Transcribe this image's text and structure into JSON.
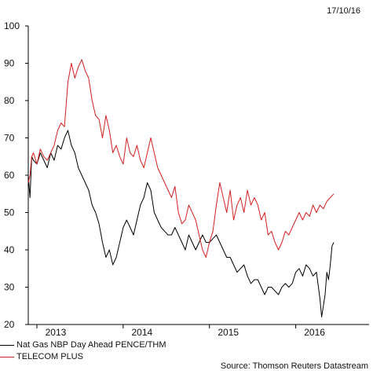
{
  "date_label": "17/10/16",
  "source": "Source: Thomson Reuters Datastream",
  "chart_data": {
    "type": "line",
    "title": "",
    "ylim": [
      20,
      100
    ],
    "xlim": [
      2012.9,
      2016.85
    ],
    "yticks": [
      20,
      30,
      40,
      50,
      60,
      70,
      80,
      90,
      100
    ],
    "xtick_labels": [
      {
        "label": "2013",
        "x": 2013.0
      },
      {
        "label": "2014",
        "x": 2014.0
      },
      {
        "label": "2015",
        "x": 2015.0
      },
      {
        "label": "2016",
        "x": 2016.0
      }
    ],
    "grid": false,
    "legend_position": "bottom-left",
    "series": [
      {
        "name": "Nat Gas NBP Day Ahead PENCE/THM",
        "color": "#000000",
        "x": [
          2012.9,
          2012.92,
          2012.94,
          2012.96,
          2013.0,
          2013.04,
          2013.08,
          2013.12,
          2013.16,
          2013.2,
          2013.24,
          2013.28,
          2013.32,
          2013.36,
          2013.4,
          2013.44,
          2013.48,
          2013.52,
          2013.56,
          2013.6,
          2013.64,
          2013.68,
          2013.72,
          2013.76,
          2013.8,
          2013.84,
          2013.88,
          2013.92,
          2013.96,
          2014.0,
          2014.04,
          2014.08,
          2014.12,
          2014.16,
          2014.2,
          2014.24,
          2014.28,
          2014.32,
          2014.36,
          2014.4,
          2014.44,
          2014.48,
          2014.52,
          2014.56,
          2014.6,
          2014.64,
          2014.68,
          2014.72,
          2014.76,
          2014.8,
          2014.84,
          2014.88,
          2014.92,
          2014.96,
          2015.0,
          2015.04,
          2015.08,
          2015.12,
          2015.16,
          2015.2,
          2015.24,
          2015.28,
          2015.32,
          2015.36,
          2015.4,
          2015.44,
          2015.48,
          2015.52,
          2015.56,
          2015.6,
          2015.64,
          2015.68,
          2015.72,
          2015.76,
          2015.8,
          2015.84,
          2015.88,
          2015.92,
          2015.96,
          2016.0,
          2016.04,
          2016.08,
          2016.12,
          2016.16,
          2016.2,
          2016.24,
          2016.28,
          2016.3,
          2016.32,
          2016.34,
          2016.36,
          2016.38,
          2016.4,
          2016.42,
          2016.44
        ],
        "y": [
          60,
          54,
          65,
          64,
          63,
          66,
          64,
          62,
          66,
          64,
          68,
          67,
          70,
          72,
          68,
          66,
          62,
          60,
          58,
          56,
          52,
          50,
          47,
          42,
          38,
          40,
          36,
          38,
          42,
          46,
          48,
          46,
          44,
          48,
          52,
          54,
          58,
          56,
          50,
          48,
          46,
          45,
          44,
          44,
          46,
          44,
          42,
          40,
          44,
          42,
          40,
          42,
          44,
          42,
          42,
          43,
          44,
          42,
          40,
          38,
          38,
          36,
          34,
          35,
          36,
          33,
          31,
          32,
          32,
          30,
          28,
          30,
          30,
          29,
          28,
          30,
          31,
          30,
          31,
          34,
          35,
          33,
          36,
          35,
          33,
          34,
          27,
          22,
          25,
          28,
          34,
          32,
          36,
          41,
          42
        ]
      },
      {
        "name": "TELECOM PLUS",
        "color": "#d42020",
        "x": [
          2012.9,
          2012.92,
          2012.94,
          2012.96,
          2013.0,
          2013.04,
          2013.08,
          2013.12,
          2013.16,
          2013.2,
          2013.24,
          2013.28,
          2013.32,
          2013.36,
          2013.4,
          2013.44,
          2013.48,
          2013.52,
          2013.56,
          2013.6,
          2013.64,
          2013.68,
          2013.72,
          2013.76,
          2013.8,
          2013.84,
          2013.88,
          2013.92,
          2013.96,
          2014.0,
          2014.04,
          2014.08,
          2014.12,
          2014.16,
          2014.2,
          2014.24,
          2014.28,
          2014.32,
          2014.36,
          2014.4,
          2014.44,
          2014.48,
          2014.52,
          2014.56,
          2014.6,
          2014.64,
          2014.68,
          2014.72,
          2014.76,
          2014.8,
          2014.84,
          2014.88,
          2014.92,
          2014.96,
          2015.0,
          2015.04,
          2015.08,
          2015.12,
          2015.16,
          2015.2,
          2015.24,
          2015.28,
          2015.32,
          2015.36,
          2015.4,
          2015.44,
          2015.48,
          2015.52,
          2015.56,
          2015.6,
          2015.64,
          2015.68,
          2015.72,
          2015.76,
          2015.8,
          2015.84,
          2015.88,
          2015.92,
          2015.96,
          2016.0,
          2016.04,
          2016.08,
          2016.12,
          2016.16,
          2016.2,
          2016.24,
          2016.28,
          2016.32,
          2016.36,
          2016.4,
          2016.44
        ],
        "y": [
          58,
          60,
          65,
          66,
          63,
          67,
          65,
          64,
          66,
          68,
          72,
          74,
          73,
          85,
          90,
          86,
          89,
          91,
          88,
          86,
          80,
          76,
          75,
          70,
          76,
          72,
          66,
          68,
          65,
          63,
          70,
          66,
          65,
          68,
          64,
          62,
          66,
          70,
          66,
          62,
          60,
          58,
          56,
          54,
          57,
          50,
          47,
          48,
          52,
          50,
          48,
          44,
          40,
          38,
          42,
          45,
          52,
          58,
          54,
          50,
          56,
          48,
          52,
          54,
          50,
          56,
          52,
          54,
          52,
          48,
          50,
          44,
          45,
          42,
          40,
          42,
          45,
          44,
          46,
          48,
          50,
          48,
          50,
          49,
          52,
          50,
          52,
          51,
          53,
          54,
          55
        ]
      }
    ]
  }
}
